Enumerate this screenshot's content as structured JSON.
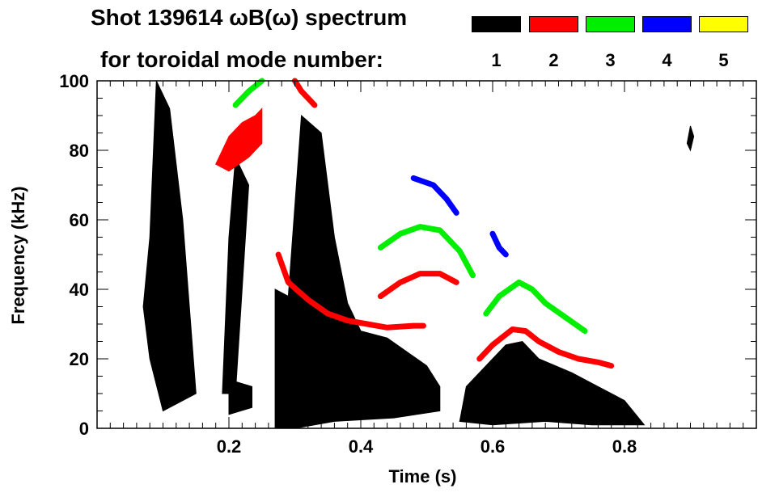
{
  "chart_data": {
    "type": "heatmap",
    "title_line1": "Shot 139614 ωB(ω) spectrum",
    "title_line2": "for toroidal mode number:",
    "xlabel": "Time (s)",
    "ylabel": "Frequency (kHz)",
    "xlim": [
      0.0,
      1.0
    ],
    "ylim": [
      0,
      100
    ],
    "xticks": [
      0.2,
      0.4,
      0.6,
      0.8
    ],
    "xtick_labels": [
      "0.2",
      "0.4",
      "0.6",
      "0.8"
    ],
    "yticks": [
      0,
      20,
      40,
      60,
      80,
      100
    ],
    "ytick_labels": [
      "0",
      "20",
      "40",
      "60",
      "80",
      "100"
    ],
    "legend": [
      {
        "label": "1",
        "color": "#000000"
      },
      {
        "label": "2",
        "color": "#ff0000"
      },
      {
        "label": "3",
        "color": "#00ee00"
      },
      {
        "label": "4",
        "color": "#0000ff"
      },
      {
        "label": "5",
        "color": "#ffff00"
      }
    ],
    "features": [
      {
        "mode": "1",
        "kind": "region",
        "points": [
          [
            0.07,
            35
          ],
          [
            0.08,
            55
          ],
          [
            0.09,
            100
          ],
          [
            0.11,
            92
          ],
          [
            0.13,
            60
          ],
          [
            0.14,
            35
          ],
          [
            0.15,
            10
          ],
          [
            0.1,
            5
          ],
          [
            0.08,
            20
          ]
        ]
      },
      {
        "mode": "1",
        "kind": "region",
        "points": [
          [
            0.19,
            10
          ],
          [
            0.2,
            55
          ],
          [
            0.21,
            78
          ],
          [
            0.23,
            70
          ],
          [
            0.22,
            40
          ],
          [
            0.21,
            10
          ]
        ]
      },
      {
        "mode": "1",
        "kind": "region",
        "points": [
          [
            0.2,
            4
          ],
          [
            0.2,
            14
          ],
          [
            0.235,
            12
          ],
          [
            0.235,
            6
          ]
        ]
      },
      {
        "mode": "1",
        "kind": "region",
        "points": [
          [
            0.27,
            0
          ],
          [
            0.27,
            40
          ],
          [
            0.29,
            38
          ],
          [
            0.31,
            90
          ],
          [
            0.34,
            85
          ],
          [
            0.36,
            55
          ],
          [
            0.38,
            36
          ],
          [
            0.4,
            28
          ],
          [
            0.44,
            26
          ],
          [
            0.5,
            18
          ],
          [
            0.52,
            12
          ],
          [
            0.52,
            5
          ],
          [
            0.45,
            3
          ],
          [
            0.36,
            2
          ],
          [
            0.3,
            0
          ]
        ]
      },
      {
        "mode": "1",
        "kind": "region",
        "points": [
          [
            0.55,
            2
          ],
          [
            0.56,
            12
          ],
          [
            0.59,
            18
          ],
          [
            0.62,
            24
          ],
          [
            0.645,
            25
          ],
          [
            0.67,
            20
          ],
          [
            0.72,
            16
          ],
          [
            0.76,
            12
          ],
          [
            0.8,
            8
          ],
          [
            0.83,
            1
          ],
          [
            0.75,
            1
          ],
          [
            0.68,
            2
          ],
          [
            0.6,
            1
          ]
        ]
      },
      {
        "mode": "1",
        "kind": "region",
        "points": [
          [
            0.895,
            82
          ],
          [
            0.9,
            87
          ],
          [
            0.905,
            84
          ],
          [
            0.9,
            80
          ]
        ]
      },
      {
        "mode": "2",
        "kind": "line",
        "points": [
          [
            0.275,
            50
          ],
          [
            0.29,
            42
          ],
          [
            0.32,
            37
          ],
          [
            0.35,
            33
          ],
          [
            0.38,
            31
          ],
          [
            0.41,
            30
          ],
          [
            0.44,
            29
          ],
          [
            0.48,
            29.5
          ],
          [
            0.495,
            29.5
          ]
        ]
      },
      {
        "mode": "2",
        "kind": "line",
        "points": [
          [
            0.43,
            38
          ],
          [
            0.46,
            42
          ],
          [
            0.49,
            44.5
          ],
          [
            0.52,
            44.5
          ],
          [
            0.545,
            42
          ]
        ]
      },
      {
        "mode": "2",
        "kind": "line",
        "points": [
          [
            0.58,
            20
          ],
          [
            0.6,
            24
          ],
          [
            0.63,
            28.5
          ],
          [
            0.65,
            28
          ],
          [
            0.67,
            25
          ],
          [
            0.7,
            22
          ],
          [
            0.73,
            20
          ],
          [
            0.76,
            19
          ],
          [
            0.78,
            18
          ]
        ]
      },
      {
        "mode": "2",
        "kind": "region",
        "points": [
          [
            0.18,
            76
          ],
          [
            0.2,
            84
          ],
          [
            0.22,
            88
          ],
          [
            0.24,
            90
          ],
          [
            0.25,
            92
          ],
          [
            0.25,
            82
          ],
          [
            0.23,
            78
          ],
          [
            0.2,
            74
          ]
        ]
      },
      {
        "mode": "2",
        "kind": "line",
        "points": [
          [
            0.3,
            100
          ],
          [
            0.31,
            97
          ],
          [
            0.33,
            93
          ]
        ]
      },
      {
        "mode": "3",
        "kind": "line",
        "points": [
          [
            0.43,
            52
          ],
          [
            0.46,
            56
          ],
          [
            0.49,
            58
          ],
          [
            0.52,
            57
          ],
          [
            0.55,
            51
          ],
          [
            0.57,
            44
          ]
        ]
      },
      {
        "mode": "3",
        "kind": "line",
        "points": [
          [
            0.59,
            33
          ],
          [
            0.61,
            38
          ],
          [
            0.64,
            42
          ],
          [
            0.66,
            40
          ],
          [
            0.68,
            36
          ],
          [
            0.71,
            32
          ],
          [
            0.74,
            28
          ]
        ]
      },
      {
        "mode": "3",
        "kind": "line",
        "points": [
          [
            0.21,
            93
          ],
          [
            0.23,
            97
          ],
          [
            0.25,
            100
          ]
        ]
      },
      {
        "mode": "4",
        "kind": "line",
        "points": [
          [
            0.48,
            72
          ],
          [
            0.51,
            70
          ],
          [
            0.53,
            66
          ],
          [
            0.545,
            62
          ]
        ]
      },
      {
        "mode": "4",
        "kind": "line",
        "points": [
          [
            0.6,
            56
          ],
          [
            0.61,
            52
          ],
          [
            0.62,
            50
          ]
        ]
      }
    ]
  }
}
